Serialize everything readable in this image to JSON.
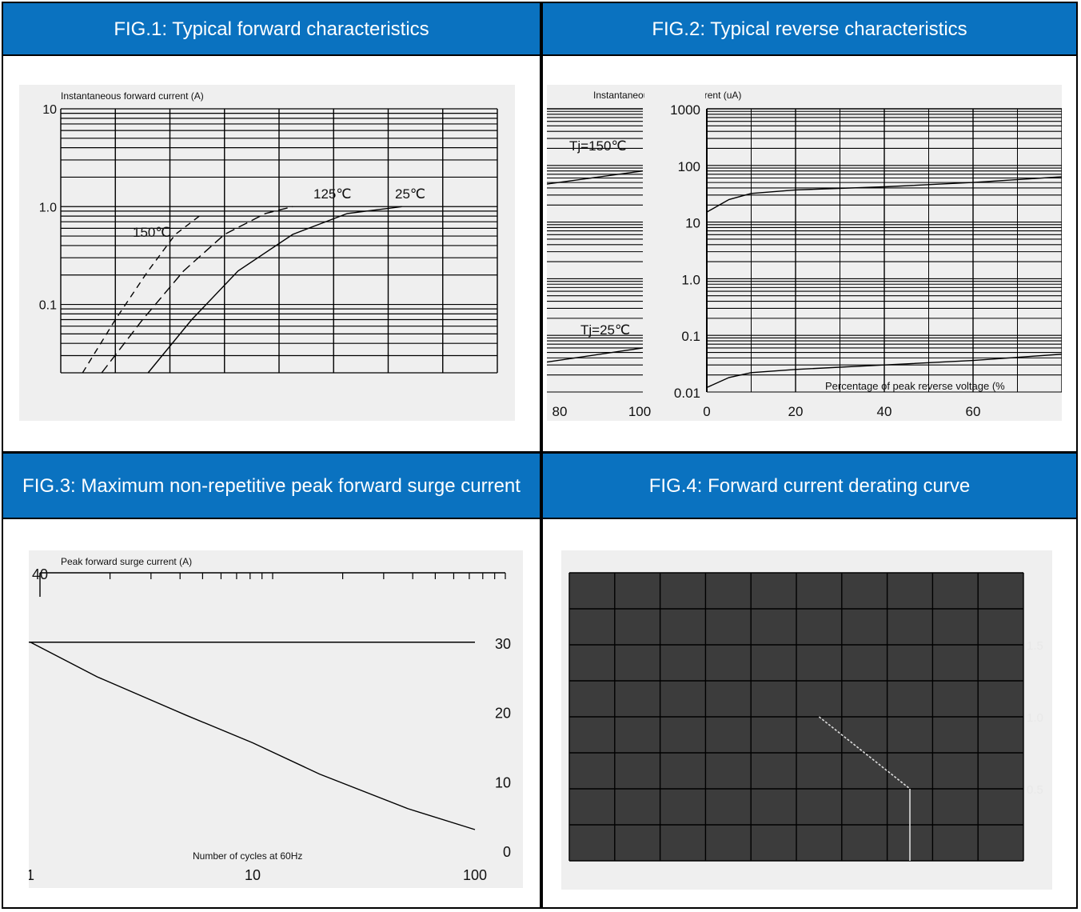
{
  "colors": {
    "header_bg": "#0a72c0",
    "header_text": "#ffffff",
    "plot_bg": "#efefef",
    "plot_bg_dark": "#3c3c3c"
  },
  "panels": {
    "fig1": {
      "title": "FIG.1: Typical forward characteristics"
    },
    "fig2": {
      "title": "FIG.2: Typical reverse characteristics"
    },
    "fig3": {
      "title": "FIG.3: Maximum non-repetitive peak forward surge current"
    },
    "fig4": {
      "title": "FIG.4: Forward current derating curve"
    }
  },
  "chart_data": [
    {
      "id": "fig1",
      "type": "line",
      "ylabel": "Instantaneous forward current (A)",
      "xlabel": "",
      "y_scale": "log",
      "ylim": [
        0.02,
        10
      ],
      "xlim": [
        0.2,
        1.8
      ],
      "y_ticks": [
        "10",
        "1.0",
        "0.1"
      ],
      "grid": true,
      "series": [
        {
          "name": "150℃",
          "x": [
            0.28,
            0.4,
            0.52,
            0.62,
            0.72
          ],
          "y": [
            0.02,
            0.07,
            0.22,
            0.52,
            0.85
          ]
        },
        {
          "name": "125℃",
          "x": [
            0.35,
            0.5,
            0.65,
            0.8,
            0.95,
            1.05
          ],
          "y": [
            0.02,
            0.07,
            0.22,
            0.52,
            0.85,
            1.0
          ]
        },
        {
          "name": "25℃",
          "x": [
            0.52,
            0.68,
            0.85,
            1.05,
            1.25,
            1.45
          ],
          "y": [
            0.02,
            0.07,
            0.22,
            0.52,
            0.85,
            1.0
          ]
        }
      ]
    },
    {
      "id": "fig2",
      "type": "line",
      "ylabel": "Instantaneous reverse current (uA)",
      "xlabel": "Percentage of peak reverse voltage (%",
      "y_scale": "log",
      "ylim": [
        0.01,
        1000
      ],
      "xlim": [
        0,
        100
      ],
      "y_ticks": [
        "1000",
        "100",
        "10",
        "1.0",
        "0.1",
        "0.01"
      ],
      "x_ticks": [
        "0",
        "20",
        "40",
        "60",
        "80",
        "100"
      ],
      "grid": true,
      "series": [
        {
          "name": "Tj=150℃",
          "x": [
            0,
            5,
            10,
            20,
            40,
            60,
            100
          ],
          "y": [
            15,
            25,
            32,
            37,
            42,
            50,
            80
          ]
        },
        {
          "name": "Tj=25℃",
          "x": [
            0,
            5,
            10,
            20,
            40,
            60,
            100
          ],
          "y": [
            0.012,
            0.018,
            0.022,
            0.025,
            0.03,
            0.036,
            0.06
          ]
        }
      ]
    },
    {
      "id": "fig3",
      "type": "line",
      "ylabel": "Peak forward surge current (A)",
      "xlabel": "Number of cycles at 60Hz",
      "x_scale": "log",
      "xlim": [
        1,
        100
      ],
      "ylim": [
        0,
        40
      ],
      "y_ticks": [
        "40",
        "30",
        "20",
        "10",
        "0"
      ],
      "x_ticks": [
        "1",
        "10",
        "100"
      ],
      "grid": false,
      "series": [
        {
          "name": "",
          "x": [
            1,
            2,
            5,
            10,
            20,
            50,
            100
          ],
          "y": [
            30,
            25,
            19.5,
            15.5,
            11,
            6,
            3
          ]
        }
      ]
    },
    {
      "id": "fig4",
      "type": "line",
      "ylabel": "",
      "xlabel": "",
      "xlim": [
        0,
        100
      ],
      "ylim": [
        0,
        2.0
      ],
      "y_ticks": [
        "1.5",
        "1.0",
        "0.5"
      ],
      "grid": true,
      "series": [
        {
          "name": "",
          "x": [
            55,
            75
          ],
          "y": [
            1.0,
            0.5
          ]
        }
      ]
    }
  ]
}
